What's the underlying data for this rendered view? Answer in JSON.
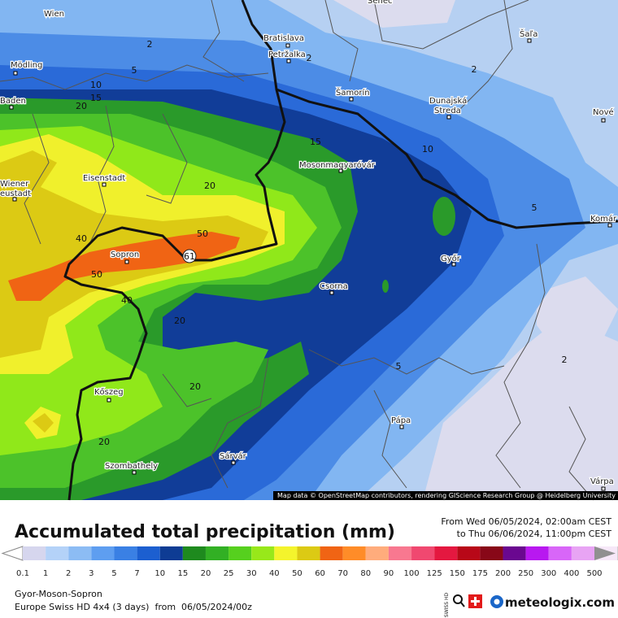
{
  "map": {
    "cities": [
      "Wien",
      "Mödling",
      "Baden",
      "Wiener",
      "eustadt",
      "Eisenstadt",
      "Sopron",
      "Kőszeg",
      "Szombathely",
      "Sárvár",
      "Csorna",
      "Pápa",
      "Győr",
      "Mosonmagyaróvár",
      "Bratislava",
      "Petržalka",
      "Šamorín",
      "Dunajská",
      "Streda",
      "Šaľa",
      "Nové",
      "Komár",
      "Várpa",
      "Senec"
    ],
    "contour_labels": [
      "2",
      "5",
      "2",
      "10",
      "15",
      "20",
      "15",
      "10",
      "2",
      "5",
      "20",
      "50",
      "61",
      "40",
      "50",
      "40",
      "20",
      "20",
      "20",
      "5",
      "2"
    ],
    "attribution": "Map data © OpenStreetMap contributors, rendering GIScience Research Group @ Heidelberg University"
  },
  "title": "Accumulated total precipitation (mm)",
  "period": {
    "from": "From Wed 06/05/2024, 02:00am CEST",
    "to": "to Thu 06/06/2024, 11:00pm CEST"
  },
  "legend": {
    "labels": [
      "0.1",
      "1",
      "2",
      "3",
      "5",
      "7",
      "10",
      "15",
      "20",
      "25",
      "30",
      "40",
      "50",
      "60",
      "70",
      "80",
      "90",
      "100",
      "125",
      "150",
      "175",
      "200",
      "250",
      "300",
      "400",
      "500"
    ],
    "colors": [
      "#ffffff",
      "#d6d6ee",
      "#b4d2f8",
      "#8cbcf4",
      "#5e9ef0",
      "#3a80e4",
      "#1c5fd0",
      "#0e3c94",
      "#1e8a1e",
      "#32b024",
      "#56d01e",
      "#98e81a",
      "#f4f42c",
      "#dcca14",
      "#f06414",
      "#ff8c28",
      "#ffac7c",
      "#f87890",
      "#f04870",
      "#e41840",
      "#b80818",
      "#880818",
      "#6a0890",
      "#b818f0",
      "#d866f8",
      "#e8a4f4",
      "#f6e8f8",
      "#cccccc",
      "#909090"
    ]
  },
  "footer": {
    "region": "Gyor-Moson-Sopron",
    "model": "Europe Swiss HD 4x4 (3 days)  from  06/05/2024/00z",
    "badge": "SWISS HD",
    "brand": "meteologix.com"
  }
}
